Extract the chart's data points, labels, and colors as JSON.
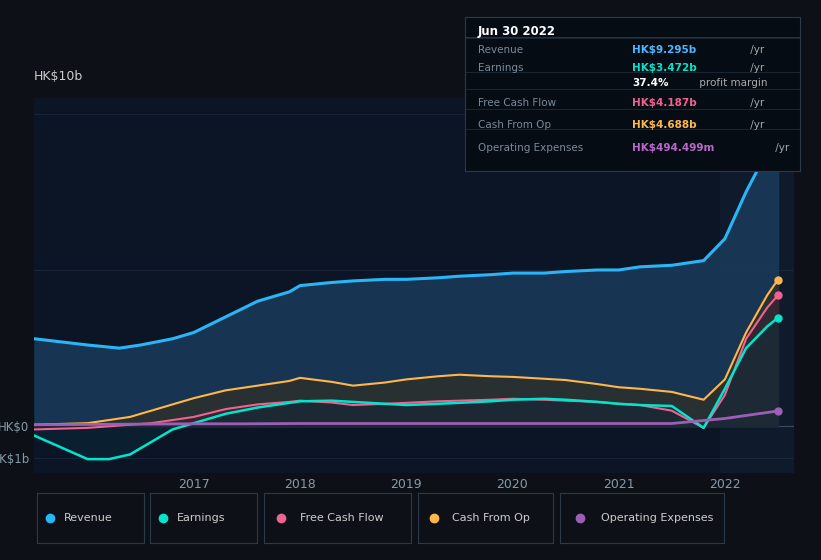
{
  "background_color": "#0d1117",
  "chart_bg": "#0c1526",
  "title": "Jun 30 2022",
  "y_label_top": "HK$10b",
  "x_ticks": [
    "2017",
    "2018",
    "2019",
    "2020",
    "2021",
    "2022"
  ],
  "tooltip": {
    "date": "Jun 30 2022",
    "rows": [
      {
        "label": "Revenue",
        "value": "HK$9.295b",
        "unit": " /yr",
        "color": "#4db8ff"
      },
      {
        "label": "Earnings",
        "value": "HK$3.472b",
        "unit": " /yr",
        "color": "#00e5cc"
      },
      {
        "label": "",
        "value": "37.4%",
        "unit": " profit margin",
        "color": "#ffffff"
      },
      {
        "label": "Free Cash Flow",
        "value": "HK$4.187b",
        "unit": " /yr",
        "color": "#f06292"
      },
      {
        "label": "Cash From Op",
        "value": "HK$4.688b",
        "unit": " /yr",
        "color": "#ffb74d"
      },
      {
        "label": "Operating Expenses",
        "value": "HK$494.499m",
        "unit": " /yr",
        "color": "#ba68c8"
      }
    ]
  },
  "series": {
    "Revenue": {
      "color": "#29b6f6",
      "fill_color": "#1a3a5c",
      "fill": true,
      "fill_alpha": 0.85,
      "linewidth": 2.2,
      "x": [
        2015.5,
        2016.0,
        2016.3,
        2016.5,
        2016.8,
        2017.0,
        2017.3,
        2017.6,
        2017.9,
        2018.0,
        2018.3,
        2018.5,
        2018.8,
        2019.0,
        2019.3,
        2019.5,
        2019.8,
        2020.0,
        2020.3,
        2020.5,
        2020.8,
        2021.0,
        2021.2,
        2021.5,
        2021.8,
        2022.0,
        2022.2,
        2022.4,
        2022.5
      ],
      "y": [
        2.8,
        2.6,
        2.5,
        2.6,
        2.8,
        3.0,
        3.5,
        4.0,
        4.3,
        4.5,
        4.6,
        4.65,
        4.7,
        4.7,
        4.75,
        4.8,
        4.85,
        4.9,
        4.9,
        4.95,
        5.0,
        5.0,
        5.1,
        5.15,
        5.3,
        6.0,
        7.5,
        8.8,
        9.3
      ]
    },
    "Earnings": {
      "color": "#00e5cc",
      "fill_color": "#0a2a3a",
      "fill": true,
      "fill_alpha": 0.5,
      "linewidth": 1.8,
      "x": [
        2015.5,
        2016.0,
        2016.2,
        2016.4,
        2016.6,
        2016.8,
        2017.0,
        2017.3,
        2017.6,
        2017.9,
        2018.0,
        2018.3,
        2018.5,
        2018.8,
        2019.0,
        2019.3,
        2019.5,
        2019.8,
        2020.0,
        2020.3,
        2020.5,
        2020.8,
        2021.0,
        2021.2,
        2021.5,
        2021.8,
        2022.0,
        2022.2,
        2022.4,
        2022.5
      ],
      "y": [
        -0.3,
        -1.05,
        -1.05,
        -0.9,
        -0.5,
        -0.1,
        0.1,
        0.4,
        0.6,
        0.75,
        0.8,
        0.82,
        0.78,
        0.72,
        0.68,
        0.72,
        0.75,
        0.8,
        0.85,
        0.88,
        0.85,
        0.78,
        0.72,
        0.68,
        0.65,
        -0.05,
        1.2,
        2.5,
        3.2,
        3.47
      ]
    },
    "Free Cash Flow": {
      "color": "#f06292",
      "fill_color": "#3a2030",
      "fill": true,
      "fill_alpha": 0.5,
      "linewidth": 1.5,
      "x": [
        2015.5,
        2016.0,
        2016.2,
        2016.4,
        2016.6,
        2016.8,
        2017.0,
        2017.3,
        2017.6,
        2017.9,
        2018.0,
        2018.3,
        2018.5,
        2018.8,
        2019.0,
        2019.3,
        2019.5,
        2019.8,
        2020.0,
        2020.3,
        2020.5,
        2020.8,
        2021.0,
        2021.2,
        2021.5,
        2021.8,
        2022.0,
        2022.2,
        2022.4,
        2022.5
      ],
      "y": [
        -0.1,
        -0.05,
        0.0,
        0.05,
        0.1,
        0.2,
        0.3,
        0.55,
        0.7,
        0.78,
        0.82,
        0.76,
        0.68,
        0.72,
        0.75,
        0.8,
        0.82,
        0.85,
        0.88,
        0.85,
        0.82,
        0.78,
        0.72,
        0.68,
        0.5,
        -0.05,
        1.0,
        2.8,
        3.8,
        4.19
      ]
    },
    "Cash From Op": {
      "color": "#ffb74d",
      "fill_color": "#3a2e10",
      "fill": true,
      "fill_alpha": 0.5,
      "linewidth": 1.5,
      "x": [
        2015.5,
        2016.0,
        2016.2,
        2016.4,
        2016.6,
        2016.8,
        2017.0,
        2017.3,
        2017.6,
        2017.9,
        2018.0,
        2018.3,
        2018.5,
        2018.8,
        2019.0,
        2019.3,
        2019.5,
        2019.8,
        2020.0,
        2020.3,
        2020.5,
        2020.8,
        2021.0,
        2021.2,
        2021.5,
        2021.8,
        2022.0,
        2022.2,
        2022.4,
        2022.5
      ],
      "y": [
        0.05,
        0.1,
        0.2,
        0.3,
        0.5,
        0.7,
        0.9,
        1.15,
        1.3,
        1.45,
        1.55,
        1.42,
        1.3,
        1.4,
        1.5,
        1.6,
        1.65,
        1.6,
        1.58,
        1.52,
        1.48,
        1.35,
        1.25,
        1.2,
        1.1,
        0.85,
        1.5,
        3.0,
        4.2,
        4.69
      ]
    },
    "Operating Expenses": {
      "color": "#9c5fb5",
      "fill": false,
      "linewidth": 2.0,
      "x": [
        2015.5,
        2016.0,
        2016.5,
        2017.0,
        2017.5,
        2018.0,
        2018.5,
        2019.0,
        2019.5,
        2020.0,
        2020.5,
        2021.0,
        2021.5,
        2022.0,
        2022.5
      ],
      "y": [
        0.05,
        0.06,
        0.07,
        0.08,
        0.08,
        0.09,
        0.09,
        0.09,
        0.09,
        0.09,
        0.09,
        0.09,
        0.09,
        0.25,
        0.49
      ]
    }
  },
  "ylim": [
    -1.5,
    10.5
  ],
  "xlim": [
    2015.5,
    2022.65
  ],
  "legend": [
    {
      "label": "Revenue",
      "color": "#29b6f6"
    },
    {
      "label": "Earnings",
      "color": "#00e5cc"
    },
    {
      "label": "Free Cash Flow",
      "color": "#f06292"
    },
    {
      "label": "Cash From Op",
      "color": "#ffb74d"
    },
    {
      "label": "Operating Expenses",
      "color": "#9c5fb5"
    }
  ],
  "vline_x": 2021.95,
  "zero_line_color": "#3a4a5a",
  "grid_color": "#1e2d40",
  "tick_color": "#8899aa",
  "text_color": "#cccccc",
  "tooltip_bg": "#060c14",
  "tooltip_border": "#2a3a4a"
}
